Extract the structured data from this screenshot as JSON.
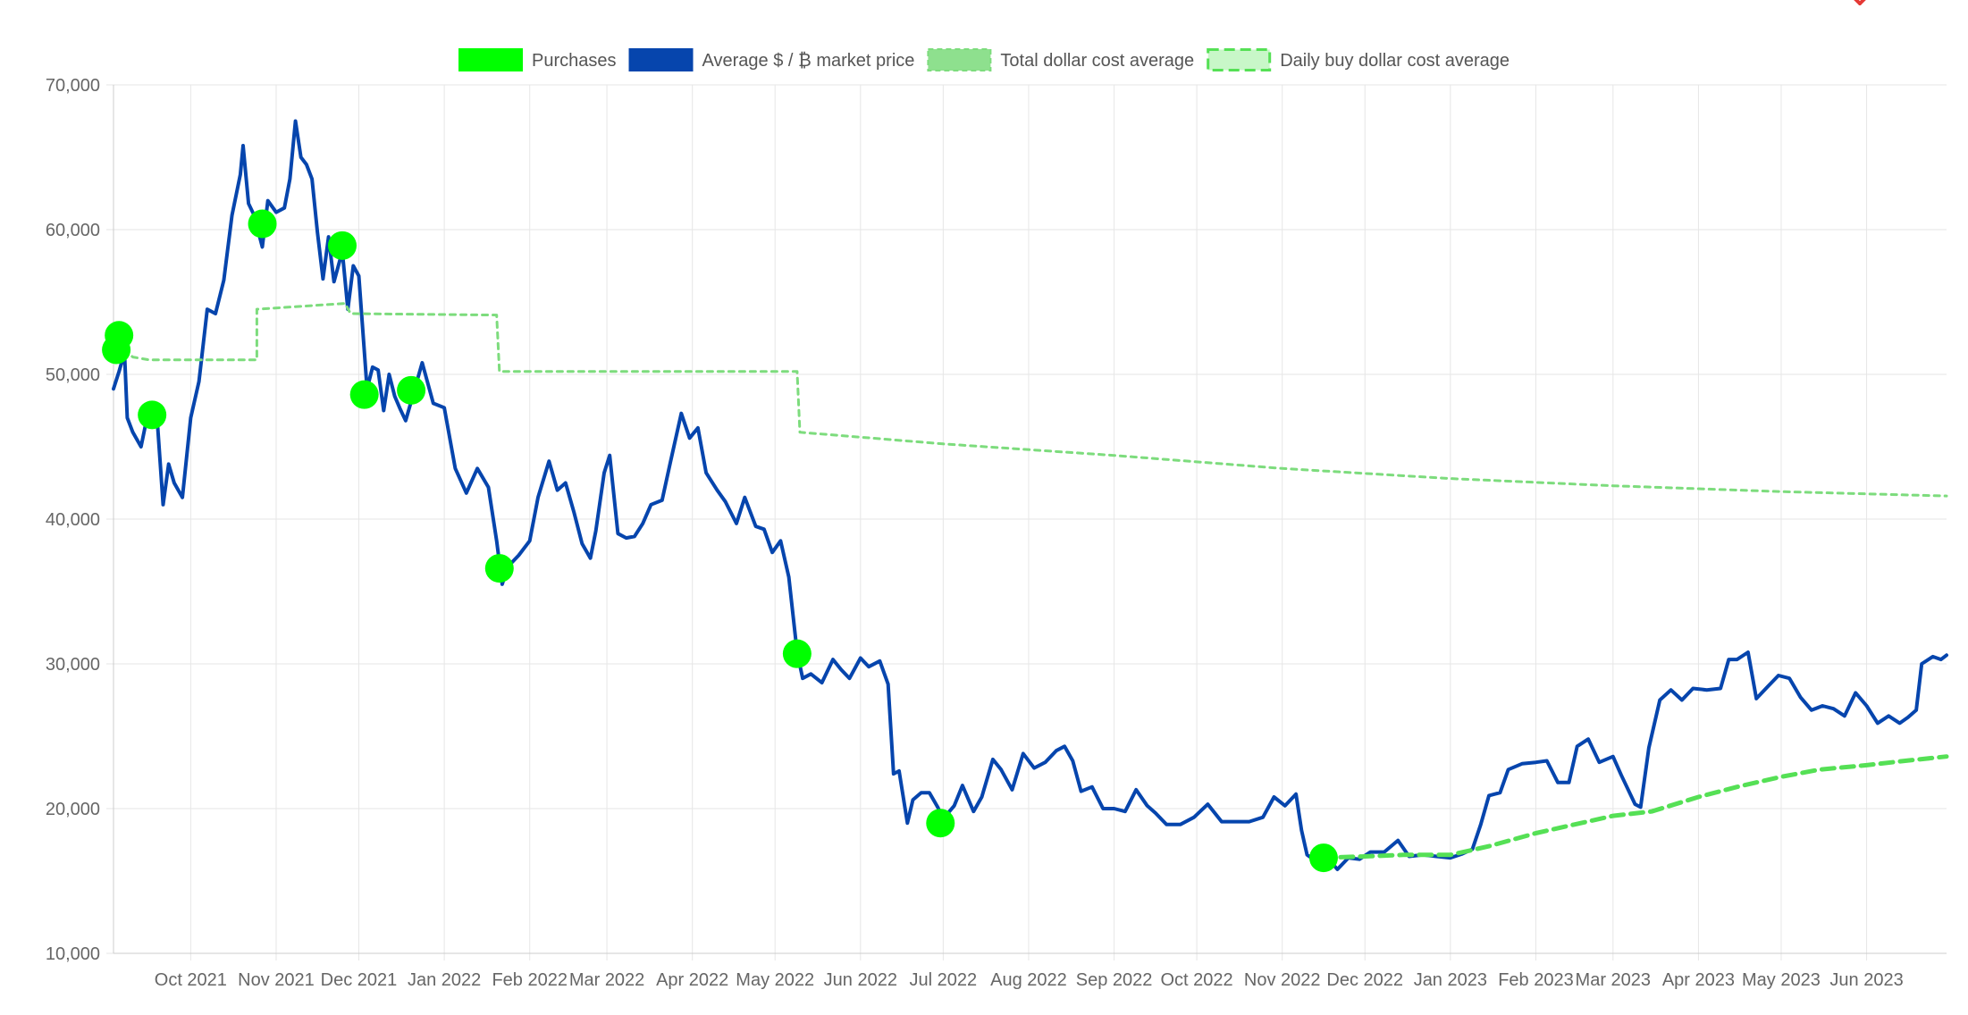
{
  "chart_data": {
    "type": "line",
    "title": "",
    "xlabel": "",
    "ylabel": "",
    "ylim": [
      10000,
      70000
    ],
    "yticks": [
      10000,
      20000,
      30000,
      40000,
      50000,
      60000,
      70000
    ],
    "ytick_labels": [
      "10,000",
      "20,000",
      "30,000",
      "40,000",
      "50,000",
      "60,000",
      "70,000"
    ],
    "xlim": [
      "2021-09-03",
      "2023-06-30"
    ],
    "xticks": [
      "2021-10-01",
      "2021-11-01",
      "2021-12-01",
      "2022-01-01",
      "2022-02-01",
      "2022-03-01",
      "2022-04-01",
      "2022-05-01",
      "2022-06-01",
      "2022-07-01",
      "2022-08-01",
      "2022-09-01",
      "2022-10-01",
      "2022-11-01",
      "2022-12-01",
      "2023-01-01",
      "2023-02-01",
      "2023-03-01",
      "2023-04-01",
      "2023-05-01",
      "2023-06-01"
    ],
    "xtick_labels": [
      "Oct 2021",
      "Nov 2021",
      "Dec 2021",
      "Jan 2022",
      "Feb 2022",
      "Mar 2022",
      "Apr 2022",
      "May 2022",
      "Jun 2022",
      "Jul 2022",
      "Aug 2022",
      "Sep 2022",
      "Oct 2022",
      "Nov 2022",
      "Dec 2022",
      "Jan 2023",
      "Feb 2023",
      "Mar 2023",
      "Apr 2023",
      "May 2023",
      "Jun 2023"
    ],
    "grid": true,
    "legend_position": "top",
    "colors": {
      "purchases": "#00ff00",
      "market": "#0645ad",
      "total_dca": "#7ddc7d",
      "daily_dca": "#55e055",
      "daily_dca_fill": "#c8f7c8",
      "grid": "#e6e6e6",
      "axis": "#cccccc"
    },
    "legend": [
      {
        "label": "Purchases",
        "style": "purchases"
      },
      {
        "label": "Average $ / ₿ market price",
        "style": "market"
      },
      {
        "label": "Total dollar cost average",
        "style": "total_dca"
      },
      {
        "label": "Daily buy dollar cost average",
        "style": "daily_dca"
      }
    ],
    "series": [
      {
        "name": "Average $ / ₿ market price",
        "kind": "market",
        "points": [
          [
            "2021-09-03",
            49000
          ],
          [
            "2021-09-05",
            50200
          ],
          [
            "2021-09-07",
            51500
          ],
          [
            "2021-09-08",
            47000
          ],
          [
            "2021-09-10",
            46000
          ],
          [
            "2021-09-13",
            45000
          ],
          [
            "2021-09-16",
            47800
          ],
          [
            "2021-09-19",
            46500
          ],
          [
            "2021-09-21",
            41000
          ],
          [
            "2021-09-23",
            43800
          ],
          [
            "2021-09-25",
            42500
          ],
          [
            "2021-09-28",
            41500
          ],
          [
            "2021-10-01",
            47000
          ],
          [
            "2021-10-04",
            49500
          ],
          [
            "2021-10-07",
            54500
          ],
          [
            "2021-10-10",
            54200
          ],
          [
            "2021-10-13",
            56500
          ],
          [
            "2021-10-16",
            61000
          ],
          [
            "2021-10-19",
            63800
          ],
          [
            "2021-10-20",
            65800
          ],
          [
            "2021-10-22",
            61800
          ],
          [
            "2021-10-24",
            61000
          ],
          [
            "2021-10-27",
            58800
          ],
          [
            "2021-10-29",
            62000
          ],
          [
            "2021-11-01",
            61200
          ],
          [
            "2021-11-04",
            61500
          ],
          [
            "2021-11-06",
            63500
          ],
          [
            "2021-11-08",
            67500
          ],
          [
            "2021-11-10",
            65000
          ],
          [
            "2021-11-12",
            64500
          ],
          [
            "2021-11-14",
            63500
          ],
          [
            "2021-11-16",
            59800
          ],
          [
            "2021-11-18",
            56600
          ],
          [
            "2021-11-20",
            59500
          ],
          [
            "2021-11-22",
            56400
          ],
          [
            "2021-11-25",
            58500
          ],
          [
            "2021-11-27",
            54500
          ],
          [
            "2021-11-29",
            57500
          ],
          [
            "2021-12-01",
            56800
          ],
          [
            "2021-12-04",
            49000
          ],
          [
            "2021-12-06",
            50500
          ],
          [
            "2021-12-08",
            50300
          ],
          [
            "2021-12-10",
            47500
          ],
          [
            "2021-12-12",
            50000
          ],
          [
            "2021-12-14",
            48500
          ],
          [
            "2021-12-16",
            47600
          ],
          [
            "2021-12-18",
            46800
          ],
          [
            "2021-12-21",
            48800
          ],
          [
            "2021-12-24",
            50800
          ],
          [
            "2021-12-28",
            48000
          ],
          [
            "2022-01-01",
            47700
          ],
          [
            "2022-01-05",
            43500
          ],
          [
            "2022-01-09",
            41800
          ],
          [
            "2022-01-13",
            43500
          ],
          [
            "2022-01-17",
            42200
          ],
          [
            "2022-01-20",
            38500
          ],
          [
            "2022-01-22",
            35500
          ],
          [
            "2022-01-24",
            36700
          ],
          [
            "2022-01-28",
            37500
          ],
          [
            "2022-02-01",
            38500
          ],
          [
            "2022-02-04",
            41500
          ],
          [
            "2022-02-08",
            44000
          ],
          [
            "2022-02-11",
            42000
          ],
          [
            "2022-02-14",
            42500
          ],
          [
            "2022-02-17",
            40500
          ],
          [
            "2022-02-20",
            38300
          ],
          [
            "2022-02-23",
            37300
          ],
          [
            "2022-02-25",
            39200
          ],
          [
            "2022-02-28",
            43200
          ],
          [
            "2022-03-02",
            44400
          ],
          [
            "2022-03-05",
            39000
          ],
          [
            "2022-03-08",
            38700
          ],
          [
            "2022-03-11",
            38800
          ],
          [
            "2022-03-14",
            39700
          ],
          [
            "2022-03-17",
            41000
          ],
          [
            "2022-03-21",
            41300
          ],
          [
            "2022-03-24",
            43900
          ],
          [
            "2022-03-28",
            47300
          ],
          [
            "2022-03-31",
            45600
          ],
          [
            "2022-04-03",
            46300
          ],
          [
            "2022-04-06",
            43200
          ],
          [
            "2022-04-10",
            42000
          ],
          [
            "2022-04-13",
            41200
          ],
          [
            "2022-04-17",
            39700
          ],
          [
            "2022-04-20",
            41500
          ],
          [
            "2022-04-24",
            39500
          ],
          [
            "2022-04-27",
            39300
          ],
          [
            "2022-04-30",
            37700
          ],
          [
            "2022-05-03",
            38500
          ],
          [
            "2022-05-06",
            36000
          ],
          [
            "2022-05-09",
            30800
          ],
          [
            "2022-05-11",
            29000
          ],
          [
            "2022-05-14",
            29300
          ],
          [
            "2022-05-18",
            28700
          ],
          [
            "2022-05-22",
            30300
          ],
          [
            "2022-05-25",
            29600
          ],
          [
            "2022-05-28",
            29000
          ],
          [
            "2022-06-01",
            30400
          ],
          [
            "2022-06-04",
            29800
          ],
          [
            "2022-06-08",
            30200
          ],
          [
            "2022-06-11",
            28600
          ],
          [
            "2022-06-13",
            22400
          ],
          [
            "2022-06-15",
            22600
          ],
          [
            "2022-06-18",
            19000
          ],
          [
            "2022-06-20",
            20600
          ],
          [
            "2022-06-23",
            21100
          ],
          [
            "2022-06-26",
            21100
          ],
          [
            "2022-06-29",
            20100
          ],
          [
            "2022-07-01",
            19300
          ],
          [
            "2022-07-05",
            20200
          ],
          [
            "2022-07-08",
            21600
          ],
          [
            "2022-07-12",
            19800
          ],
          [
            "2022-07-15",
            20800
          ],
          [
            "2022-07-19",
            23400
          ],
          [
            "2022-07-22",
            22700
          ],
          [
            "2022-07-26",
            21300
          ],
          [
            "2022-07-30",
            23800
          ],
          [
            "2022-08-03",
            22800
          ],
          [
            "2022-08-07",
            23200
          ],
          [
            "2022-08-11",
            24000
          ],
          [
            "2022-08-14",
            24300
          ],
          [
            "2022-08-17",
            23300
          ],
          [
            "2022-08-20",
            21200
          ],
          [
            "2022-08-24",
            21500
          ],
          [
            "2022-08-28",
            20000
          ],
          [
            "2022-09-01",
            20000
          ],
          [
            "2022-09-05",
            19800
          ],
          [
            "2022-09-09",
            21300
          ],
          [
            "2022-09-13",
            20200
          ],
          [
            "2022-09-16",
            19700
          ],
          [
            "2022-09-20",
            18900
          ],
          [
            "2022-09-25",
            18900
          ],
          [
            "2022-09-30",
            19400
          ],
          [
            "2022-10-05",
            20300
          ],
          [
            "2022-10-10",
            19100
          ],
          [
            "2022-10-15",
            19100
          ],
          [
            "2022-10-20",
            19100
          ],
          [
            "2022-10-25",
            19400
          ],
          [
            "2022-10-29",
            20800
          ],
          [
            "2022-11-02",
            20200
          ],
          [
            "2022-11-06",
            21000
          ],
          [
            "2022-11-08",
            18500
          ],
          [
            "2022-11-10",
            16800
          ],
          [
            "2022-11-13",
            16400
          ],
          [
            "2022-11-17",
            16700
          ],
          [
            "2022-11-21",
            15800
          ],
          [
            "2022-11-25",
            16600
          ],
          [
            "2022-11-29",
            16500
          ],
          [
            "2022-12-03",
            17000
          ],
          [
            "2022-12-08",
            17000
          ],
          [
            "2022-12-13",
            17800
          ],
          [
            "2022-12-17",
            16700
          ],
          [
            "2022-12-22",
            16800
          ],
          [
            "2022-12-27",
            16700
          ],
          [
            "2023-01-01",
            16600
          ],
          [
            "2023-01-05",
            16850
          ],
          [
            "2023-01-09",
            17200
          ],
          [
            "2023-01-12",
            18900
          ],
          [
            "2023-01-15",
            20900
          ],
          [
            "2023-01-19",
            21100
          ],
          [
            "2023-01-22",
            22700
          ],
          [
            "2023-01-27",
            23100
          ],
          [
            "2023-02-01",
            23200
          ],
          [
            "2023-02-05",
            23300
          ],
          [
            "2023-02-09",
            21800
          ],
          [
            "2023-02-13",
            21800
          ],
          [
            "2023-02-16",
            24300
          ],
          [
            "2023-02-20",
            24800
          ],
          [
            "2023-02-24",
            23200
          ],
          [
            "2023-03-01",
            23600
          ],
          [
            "2023-03-04",
            22300
          ],
          [
            "2023-03-09",
            20300
          ],
          [
            "2023-03-11",
            20100
          ],
          [
            "2023-03-14",
            24200
          ],
          [
            "2023-03-18",
            27500
          ],
          [
            "2023-03-22",
            28200
          ],
          [
            "2023-03-26",
            27500
          ],
          [
            "2023-03-30",
            28300
          ],
          [
            "2023-04-04",
            28200
          ],
          [
            "2023-04-09",
            28300
          ],
          [
            "2023-04-12",
            30300
          ],
          [
            "2023-04-15",
            30300
          ],
          [
            "2023-04-19",
            30800
          ],
          [
            "2023-04-22",
            27600
          ],
          [
            "2023-04-26",
            28400
          ],
          [
            "2023-04-30",
            29200
          ],
          [
            "2023-05-04",
            29000
          ],
          [
            "2023-05-08",
            27700
          ],
          [
            "2023-05-12",
            26800
          ],
          [
            "2023-05-16",
            27100
          ],
          [
            "2023-05-20",
            26900
          ],
          [
            "2023-05-24",
            26400
          ],
          [
            "2023-05-28",
            28000
          ],
          [
            "2023-06-01",
            27100
          ],
          [
            "2023-06-05",
            25900
          ],
          [
            "2023-06-09",
            26400
          ],
          [
            "2023-06-13",
            25900
          ],
          [
            "2023-06-16",
            26300
          ],
          [
            "2023-06-19",
            26800
          ],
          [
            "2023-06-21",
            30000
          ],
          [
            "2023-06-25",
            30500
          ],
          [
            "2023-06-28",
            30300
          ],
          [
            "2023-06-30",
            30600
          ]
        ]
      },
      {
        "name": "Total dollar cost average",
        "kind": "total_dca",
        "points": [
          [
            "2021-09-03",
            51800
          ],
          [
            "2021-09-06",
            51800
          ],
          [
            "2021-09-10",
            51200
          ],
          [
            "2021-09-16",
            51000
          ],
          [
            "2021-10-25",
            51000
          ],
          [
            "2021-10-25",
            54500
          ],
          [
            "2021-11-26",
            54900
          ],
          [
            "2021-11-28",
            54200
          ],
          [
            "2022-01-20",
            54100
          ],
          [
            "2022-01-21",
            50200
          ],
          [
            "2022-05-09",
            50200
          ],
          [
            "2022-05-10",
            46000
          ],
          [
            "2022-07-01",
            45200
          ],
          [
            "2022-09-01",
            44400
          ],
          [
            "2022-11-01",
            43500
          ],
          [
            "2023-01-01",
            42800
          ],
          [
            "2023-03-01",
            42300
          ],
          [
            "2023-05-01",
            41900
          ],
          [
            "2023-06-30",
            41600
          ]
        ]
      },
      {
        "name": "Daily buy dollar cost average",
        "kind": "daily_dca",
        "points": [
          [
            "2022-11-15",
            16600
          ],
          [
            "2022-12-01",
            16700
          ],
          [
            "2022-12-15",
            16800
          ],
          [
            "2023-01-01",
            16800
          ],
          [
            "2023-01-15",
            17400
          ],
          [
            "2023-02-01",
            18300
          ],
          [
            "2023-02-15",
            18900
          ],
          [
            "2023-03-01",
            19500
          ],
          [
            "2023-03-15",
            19800
          ],
          [
            "2023-04-01",
            20800
          ],
          [
            "2023-04-15",
            21500
          ],
          [
            "2023-05-01",
            22200
          ],
          [
            "2023-05-15",
            22700
          ],
          [
            "2023-06-01",
            23000
          ],
          [
            "2023-06-15",
            23300
          ],
          [
            "2023-06-30",
            23600
          ]
        ]
      },
      {
        "name": "Purchases",
        "kind": "purchases",
        "points": [
          [
            "2021-09-04",
            51700
          ],
          [
            "2021-09-05",
            52700
          ],
          [
            "2021-09-17",
            47200
          ],
          [
            "2021-10-27",
            60400
          ],
          [
            "2021-11-25",
            58900
          ],
          [
            "2021-12-03",
            48600
          ],
          [
            "2021-12-20",
            48900
          ],
          [
            "2022-01-21",
            36600
          ],
          [
            "2022-05-09",
            30700
          ],
          [
            "2022-06-30",
            19000
          ],
          [
            "2022-11-16",
            16600
          ]
        ]
      }
    ]
  }
}
